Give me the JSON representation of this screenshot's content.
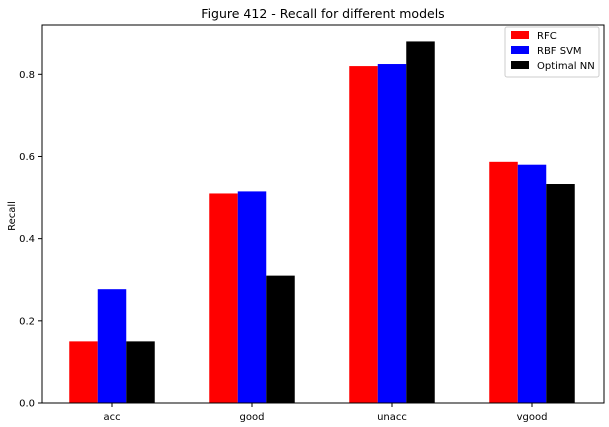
{
  "chart_data": {
    "type": "bar",
    "title": "Figure 412 - Recall for different models",
    "xlabel": "",
    "ylabel": "Recall",
    "categories": [
      "acc",
      "good",
      "unacc",
      "vgood"
    ],
    "series": [
      {
        "name": "RFC",
        "color": "#ff0000",
        "values": [
          0.15,
          0.51,
          0.82,
          0.587
        ]
      },
      {
        "name": "RBF SVM",
        "color": "#0000ff",
        "values": [
          0.277,
          0.515,
          0.825,
          0.58
        ]
      },
      {
        "name": "Optimal NN",
        "color": "#000000",
        "values": [
          0.15,
          0.31,
          0.88,
          0.533
        ]
      }
    ],
    "ylim": [
      0,
      0.92
    ],
    "yticks": [
      0.0,
      0.2,
      0.4,
      0.6,
      0.8
    ],
    "ytick_labels": [
      "0.0",
      "0.2",
      "0.4",
      "0.6",
      "0.8"
    ],
    "grid": false,
    "legend": "top-right"
  }
}
